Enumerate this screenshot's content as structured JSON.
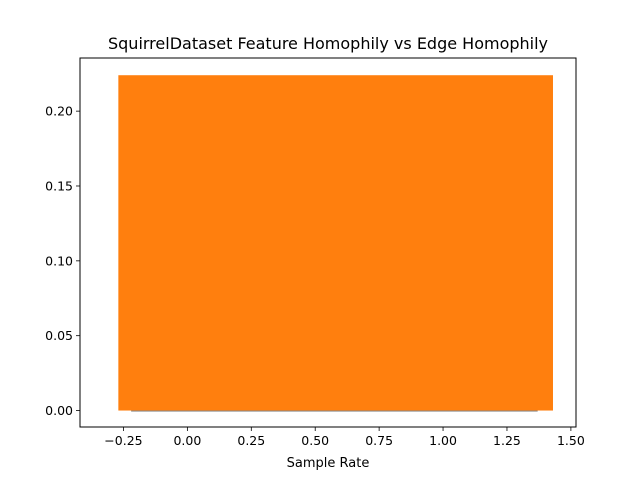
{
  "chart_data": {
    "type": "bar",
    "title": "SquirrelDataset Feature Homophily vs Edge Homophily",
    "xlabel": "Sample Rate",
    "ylabel": "",
    "xlim": [
      -0.42,
      1.52
    ],
    "ylim": [
      -0.011,
      0.2355
    ],
    "xticks": [
      "−0.25",
      "0.00",
      "0.25",
      "0.50",
      "0.75",
      "1.00",
      "1.25",
      "1.50"
    ],
    "xtick_values": [
      -0.25,
      0,
      0.25,
      0.5,
      0.75,
      1.0,
      1.25,
      1.5
    ],
    "yticks": [
      "0.00",
      "0.05",
      "0.10",
      "0.15",
      "0.20"
    ],
    "ytick_values": [
      0,
      0.05,
      0.1,
      0.15,
      0.2
    ],
    "grid": false,
    "series": [
      {
        "color": "#7f7f7f",
        "bars": [
          {
            "x0": -0.22,
            "x1": 1.37,
            "value": 0.0
          }
        ]
      },
      {
        "color": "#ff7f0e",
        "bars": [
          {
            "x0": -0.27,
            "x1": 1.43,
            "value": 0.224
          }
        ]
      }
    ]
  }
}
